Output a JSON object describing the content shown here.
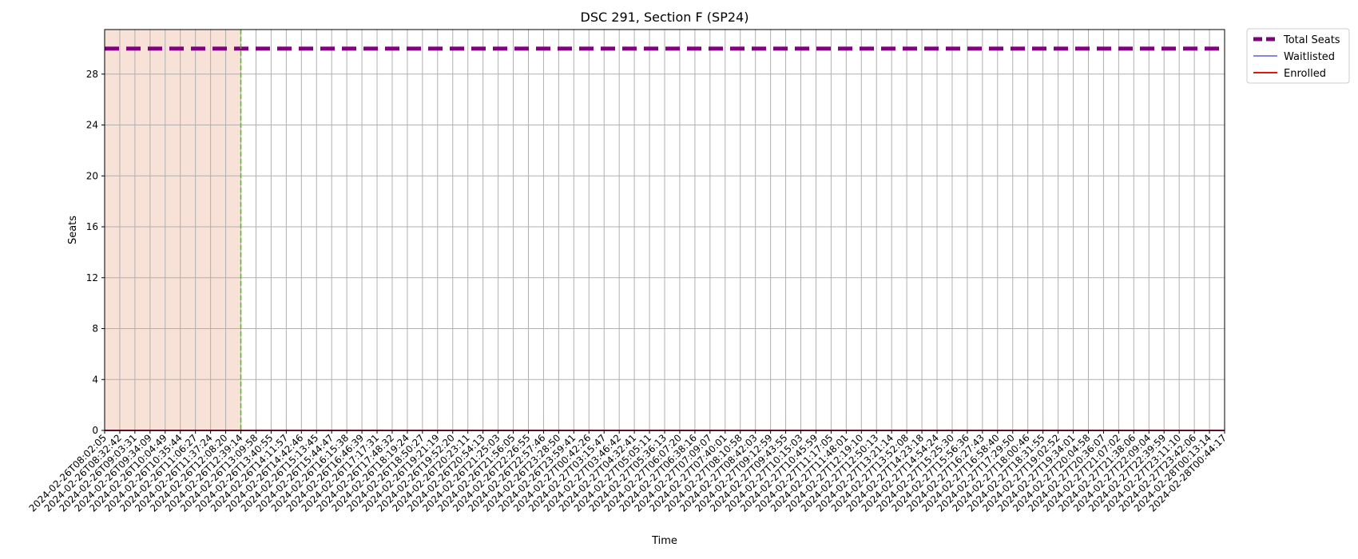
{
  "chart_data": {
    "type": "line",
    "title": "DSC 291, Section F (SP24)",
    "xlabel": "Time",
    "ylabel": "Seats",
    "ylim": [
      0,
      31.5
    ],
    "yticks": [
      0,
      4,
      8,
      12,
      16,
      20,
      24,
      28
    ],
    "grid": true,
    "legend_position": "outside-top-right",
    "x": [
      "2024-02-26T08:02:05",
      "2024-02-26T08:32:42",
      "2024-02-26T09:03:31",
      "2024-02-26T09:34:09",
      "2024-02-26T10:04:49",
      "2024-02-26T10:35:44",
      "2024-02-26T11:06:27",
      "2024-02-26T11:37:24",
      "2024-02-26T12:08:20",
      "2024-02-26T12:39:14",
      "2024-02-26T13:09:58",
      "2024-02-26T13:40:55",
      "2024-02-26T14:11:57",
      "2024-02-26T14:42:46",
      "2024-02-26T15:13:45",
      "2024-02-26T15:44:47",
      "2024-02-26T16:15:38",
      "2024-02-26T16:46:39",
      "2024-02-26T17:17:31",
      "2024-02-26T17:48:32",
      "2024-02-26T18:19:24",
      "2024-02-26T18:50:27",
      "2024-02-26T19:21:19",
      "2024-02-26T19:52:20",
      "2024-02-26T20:23:11",
      "2024-02-26T20:54:13",
      "2024-02-26T21:25:03",
      "2024-02-26T21:56:05",
      "2024-02-26T22:26:55",
      "2024-02-26T22:57:46",
      "2024-02-26T23:28:50",
      "2024-02-26T23:59:41",
      "2024-02-27T00:42:26",
      "2024-02-27T03:15:47",
      "2024-02-27T03:46:42",
      "2024-02-27T04:32:41",
      "2024-02-27T05:05:11",
      "2024-02-27T05:36:13",
      "2024-02-27T06:07:20",
      "2024-02-27T06:38:16",
      "2024-02-27T07:09:07",
      "2024-02-27T07:40:01",
      "2024-02-27T08:10:58",
      "2024-02-27T08:42:03",
      "2024-02-27T09:12:59",
      "2024-02-27T09:43:55",
      "2024-02-27T10:15:03",
      "2024-02-27T10:45:59",
      "2024-02-27T11:17:05",
      "2024-02-27T11:48:01",
      "2024-02-27T12:19:10",
      "2024-02-27T12:50:13",
      "2024-02-27T13:21:14",
      "2024-02-27T13:52:08",
      "2024-02-27T14:23:18",
      "2024-02-27T14:54:24",
      "2024-02-27T15:25:30",
      "2024-02-27T15:56:36",
      "2024-02-27T16:27:43",
      "2024-02-27T16:58:40",
      "2024-02-27T17:29:50",
      "2024-02-27T18:00:46",
      "2024-02-27T18:31:55",
      "2024-02-27T19:02:52",
      "2024-02-27T19:34:01",
      "2024-02-27T20:04:58",
      "2024-02-27T20:36:07",
      "2024-02-27T21:07:02",
      "2024-02-27T21:38:06",
      "2024-02-27T22:09:04",
      "2024-02-27T22:39:59",
      "2024-02-27T23:11:10",
      "2024-02-27T23:42:06",
      "2024-02-28T00:13:14",
      "2024-02-28T00:44:17"
    ],
    "series": [
      {
        "name": "Total Seats",
        "constant": 30,
        "color": "#800080",
        "style": "dashed-thick"
      },
      {
        "name": "Waitlisted",
        "constant": 0,
        "color": "#3b3bdc",
        "style": "solid-thin"
      },
      {
        "name": "Enrolled",
        "constant": 0,
        "color": "#e8150d",
        "style": "solid"
      }
    ],
    "shaded_region": {
      "x_start": "2024-02-26T08:02:05",
      "x_end": "2024-02-26T12:39:14",
      "color": "#f8e1d6"
    },
    "vertical_marker": {
      "x": "2024-02-26T12:39:14",
      "color": "#33cc00",
      "style": "dashed"
    }
  }
}
